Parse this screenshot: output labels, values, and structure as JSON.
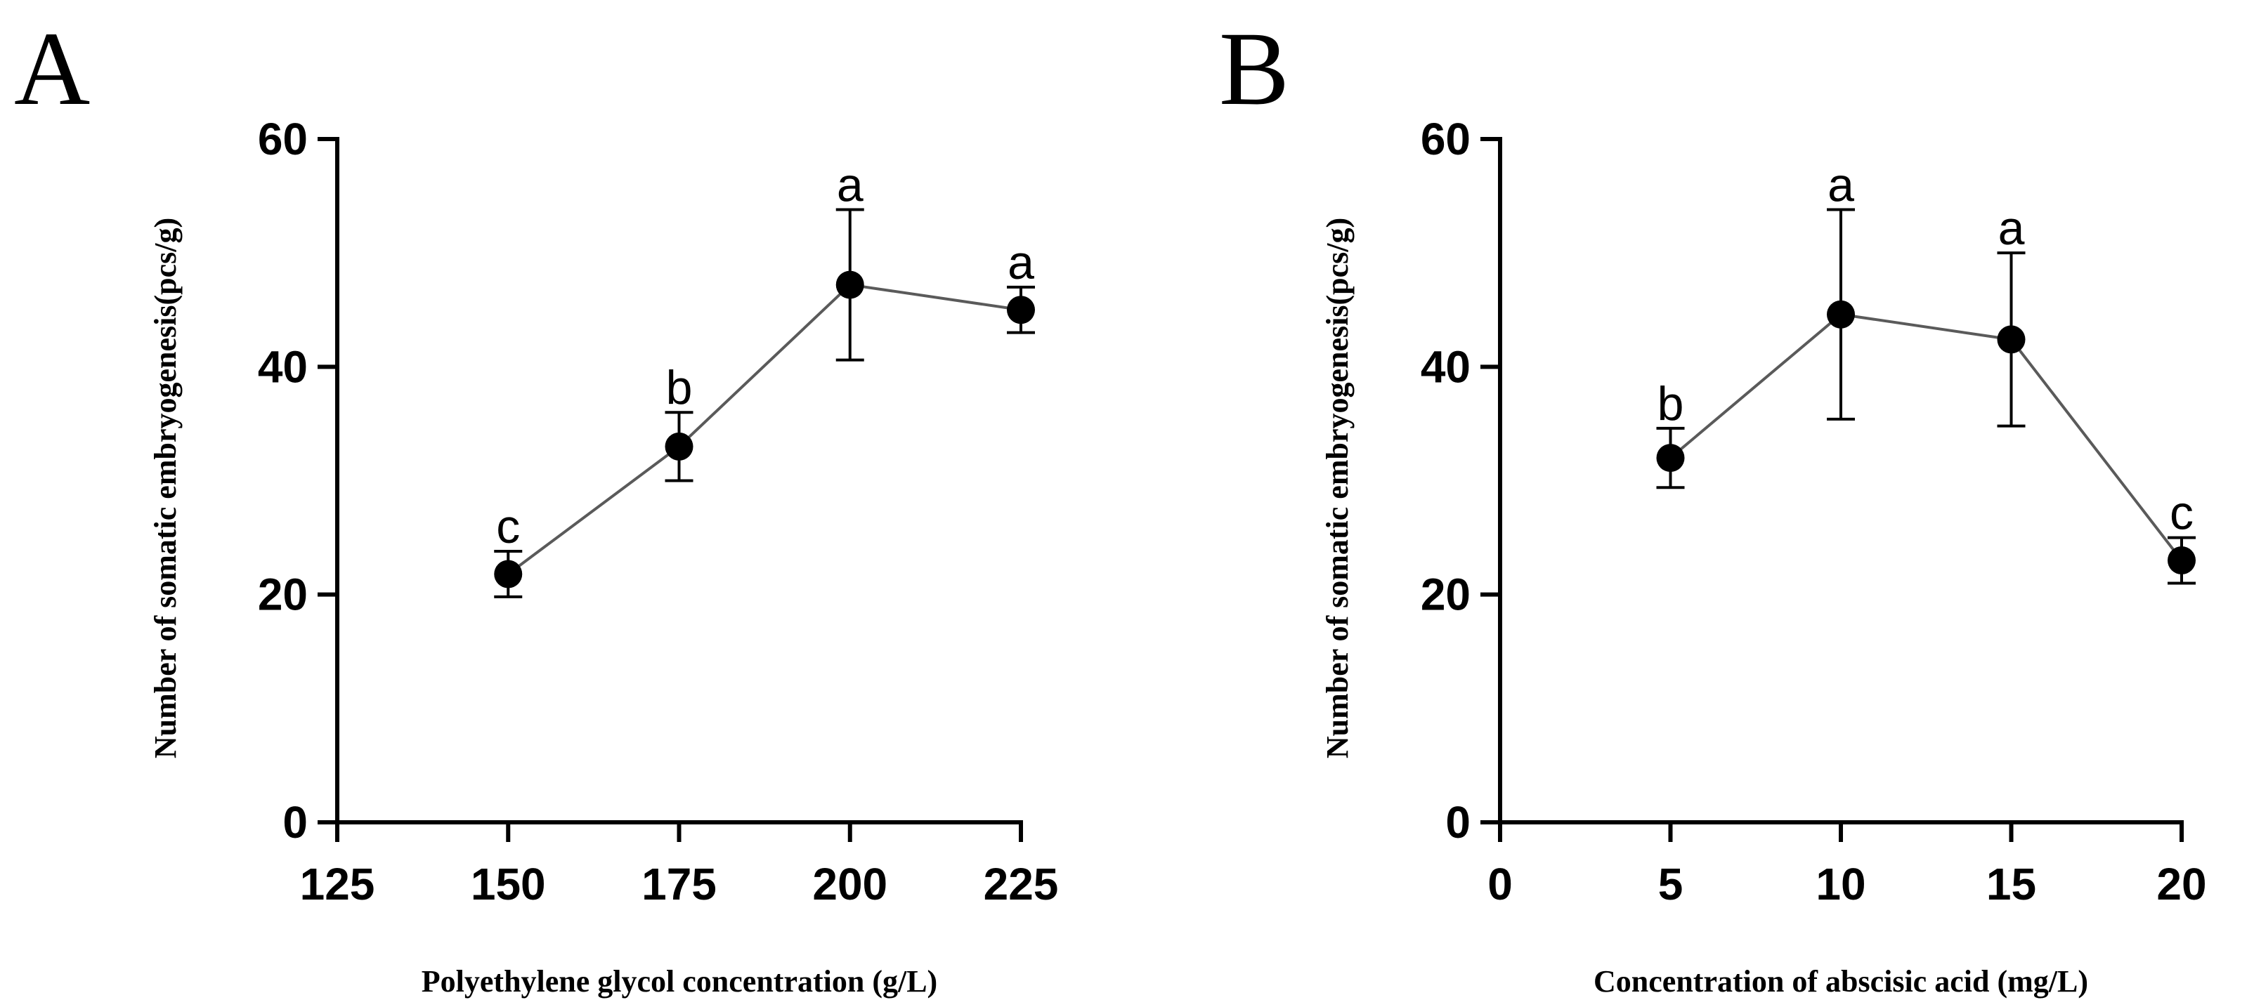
{
  "chart_data": [
    {
      "type": "line",
      "panel_label": "A",
      "title": "",
      "xlabel": "Polyethylene glycol concentration (g/L)",
      "ylabel": "Number of somatic embryogenesis(pcs/g)",
      "xlim": [
        125,
        225
      ],
      "ylim": [
        0,
        60
      ],
      "xticks": [
        125,
        150,
        175,
        200,
        225
      ],
      "yticks": [
        0,
        20,
        40,
        60
      ],
      "x": [
        150,
        175,
        200,
        225
      ],
      "values": [
        21.8,
        33.0,
        47.2,
        45.0
      ],
      "errors": [
        2.0,
        3.0,
        6.6,
        2.0
      ],
      "significance": [
        "c",
        "b",
        "a",
        "a"
      ]
    },
    {
      "type": "line",
      "panel_label": "B",
      "title": "",
      "xlabel": "Concentration of abscisic acid (mg/L)",
      "ylabel": "Number of somatic embryogenesis(pcs/g)",
      "xlim": [
        0,
        20
      ],
      "ylim": [
        0,
        60
      ],
      "xticks": [
        0,
        5,
        10,
        15,
        20
      ],
      "yticks": [
        0,
        20,
        40,
        60
      ],
      "x": [
        5,
        10,
        15,
        20
      ],
      "values": [
        32.0,
        44.6,
        42.4,
        23.0
      ],
      "errors": [
        2.6,
        9.2,
        7.6,
        2.0
      ],
      "significance": [
        "b",
        "a",
        "a",
        "c"
      ]
    }
  ]
}
